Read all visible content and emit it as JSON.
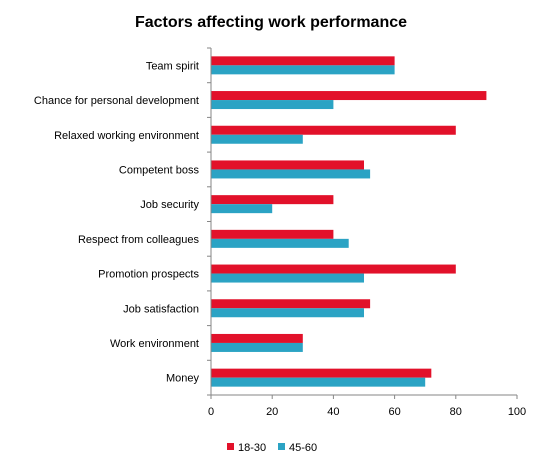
{
  "chart_data": {
    "type": "bar",
    "orientation": "horizontal",
    "title": "Factors affecting work performance",
    "xlabel": "",
    "ylabel": "",
    "xlim": [
      0,
      100
    ],
    "ticks": [
      0,
      20,
      40,
      60,
      80,
      100
    ],
    "grid": false,
    "legend_position": "bottom",
    "categories": [
      "Team spirit",
      "Chance for personal development",
      "Relaxed working environment",
      "Competent boss",
      "Job security",
      "Respect from colleagues",
      "Promotion prospects",
      "Job satisfaction",
      "Work environment",
      "Money"
    ],
    "series": [
      {
        "name": "18-30",
        "color": "#e2112a",
        "values": [
          60,
          90,
          80,
          50,
          40,
          40,
          80,
          52,
          30,
          72
        ]
      },
      {
        "name": "45-60",
        "color": "#2ba3c4",
        "values": [
          60,
          40,
          30,
          52,
          20,
          45,
          50,
          50,
          30,
          70
        ]
      }
    ]
  }
}
